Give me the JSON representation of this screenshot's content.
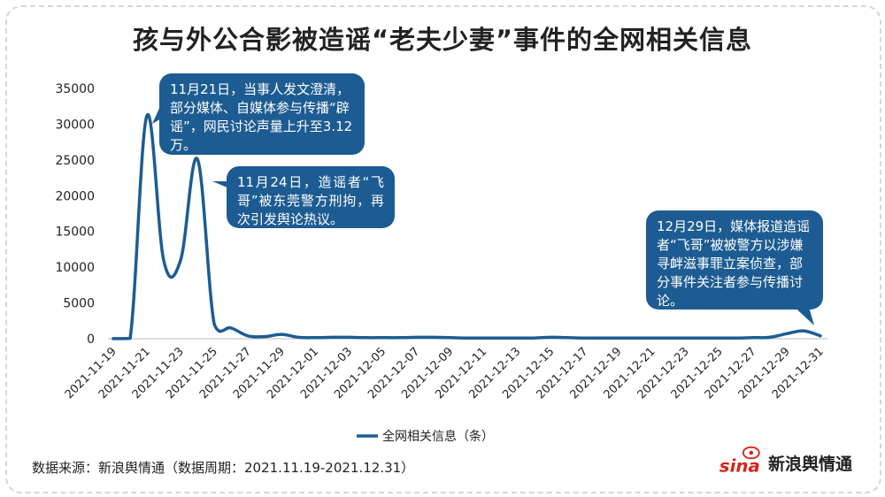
{
  "title": "孩与外公合影被造谣“老夫少妻”事件的全网相关信息",
  "source": "数据来源：新浪舆情通（数据周期：2021.11.19-2021.12.31）",
  "brand": "新浪舆情通",
  "logo_glyph": "sina",
  "colors": {
    "line": "#1d5c92",
    "callout": "#1d5c92",
    "logo": "#d62418"
  },
  "callouts": [
    {
      "text": "11月21日，当事人发文澄清，部分媒体、自媒体参与传播“辟谣”，网民讨论声量上升至3.12万。"
    },
    {
      "text": "11月24日，造谣者“飞哥”被东莞警方刑拘，再次引发舆论热议。"
    },
    {
      "text": "12月29日，媒体报道造谣者“飞哥”被被警方以涉嫌寻衅滋事罪立案侦查，部分事件关注者参与传播讨论。"
    }
  ],
  "chart_data": {
    "type": "line",
    "ylim": [
      0,
      35000
    ],
    "yticks": [
      0,
      5000,
      10000,
      15000,
      20000,
      25000,
      30000,
      35000
    ],
    "grid": false,
    "legend_position": "bottom",
    "xtick_labels": [
      "2021-11-19",
      "2021-11-21",
      "2021-11-23",
      "2021-11-25",
      "2021-11-27",
      "2021-11-29",
      "2021-12-01",
      "2021-12-03",
      "2021-12-05",
      "2021-12-07",
      "2021-12-09",
      "2021-12-11",
      "2021-12-13",
      "2021-12-15",
      "2021-12-17",
      "2021-12-19",
      "2021-12-21",
      "2021-12-23",
      "2021-12-25",
      "2021-12-27",
      "2021-12-29",
      "2021-12-31"
    ],
    "x": [
      "2021-11-19",
      "2021-11-20",
      "2021-11-21",
      "2021-11-22",
      "2021-11-23",
      "2021-11-24",
      "2021-11-25",
      "2021-11-26",
      "2021-11-27",
      "2021-11-28",
      "2021-11-29",
      "2021-11-30",
      "2021-12-01",
      "2021-12-02",
      "2021-12-03",
      "2021-12-04",
      "2021-12-05",
      "2021-12-06",
      "2021-12-07",
      "2021-12-08",
      "2021-12-09",
      "2021-12-10",
      "2021-12-11",
      "2021-12-12",
      "2021-12-13",
      "2021-12-14",
      "2021-12-15",
      "2021-12-16",
      "2021-12-17",
      "2021-12-18",
      "2021-12-19",
      "2021-12-20",
      "2021-12-21",
      "2021-12-22",
      "2021-12-23",
      "2021-12-24",
      "2021-12-25",
      "2021-12-26",
      "2021-12-27",
      "2021-12-28",
      "2021-12-29",
      "2021-12-30",
      "2021-12-31"
    ],
    "series": [
      {
        "name": "全网相关信息（条）",
        "values": [
          10,
          50,
          31200,
          10900,
          11000,
          25100,
          2000,
          1500,
          400,
          300,
          600,
          200,
          150,
          200,
          200,
          150,
          150,
          150,
          200,
          200,
          150,
          100,
          100,
          100,
          100,
          100,
          200,
          150,
          100,
          100,
          100,
          100,
          100,
          100,
          100,
          100,
          100,
          100,
          150,
          200,
          700,
          1100,
          400
        ]
      }
    ]
  }
}
